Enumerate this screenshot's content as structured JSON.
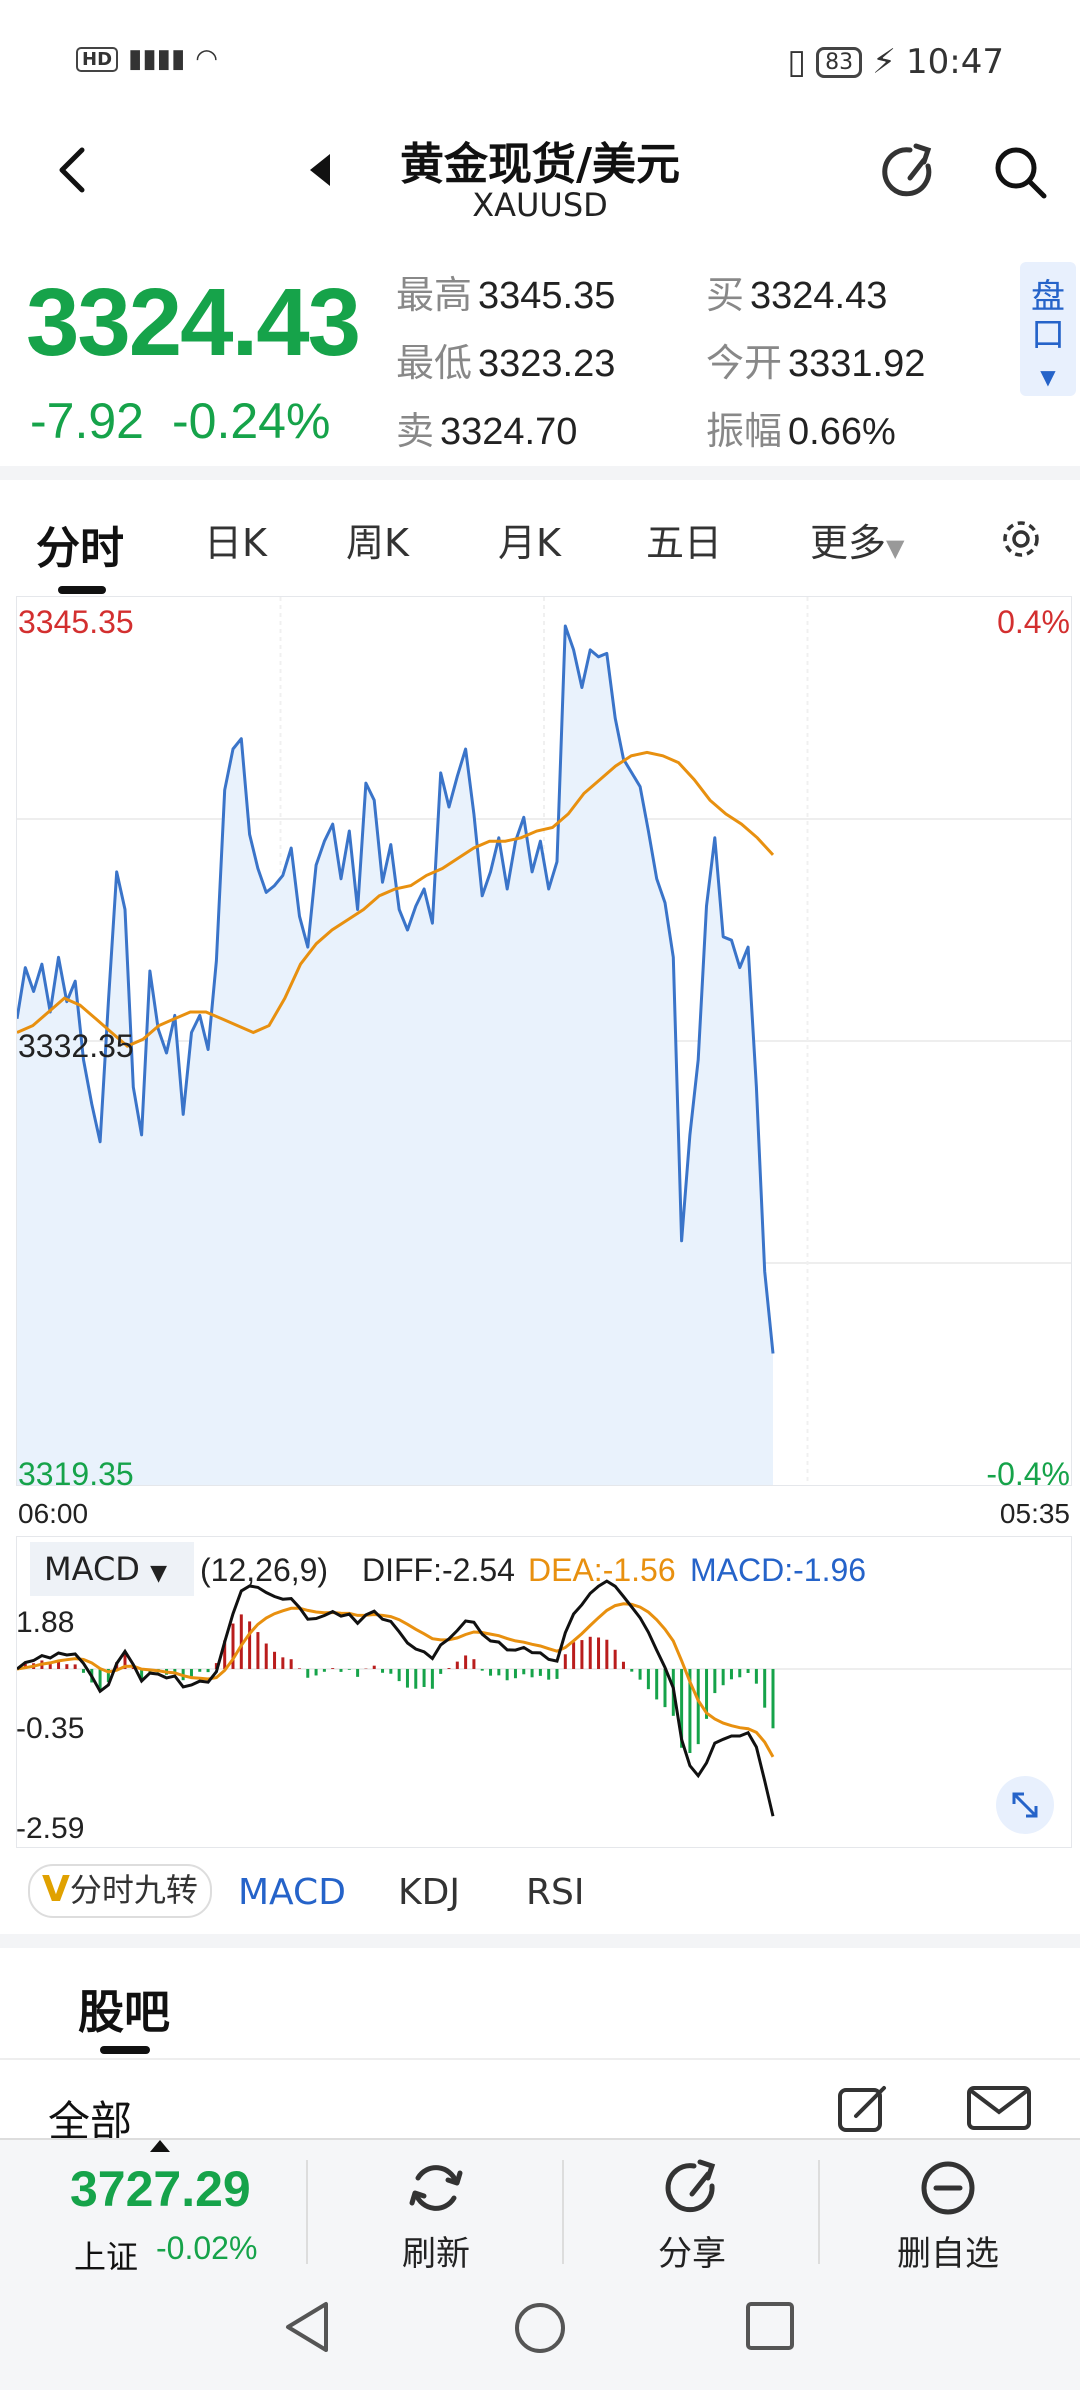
{
  "status_bar": {
    "left_text": "HD 5G",
    "battery": "83",
    "time": "10:47"
  },
  "header": {
    "title": "黄金现货/美元",
    "subtitle": "XAUUSD"
  },
  "quote": {
    "price": "3324.43",
    "change": "-7.92",
    "change_pct": "-0.24%",
    "high_label": "最高",
    "high": "3345.35",
    "low_label": "最低",
    "low": "3323.23",
    "sell_label": "卖",
    "sell": "3324.70",
    "buy_label": "买",
    "buy": "3324.43",
    "open_label": "今开",
    "open": "3331.92",
    "amp_label": "振幅",
    "amp": "0.66%",
    "pankou": "盘口"
  },
  "tabs": [
    "分时",
    "日K",
    "周K",
    "月K",
    "五日",
    "更多"
  ],
  "chart": {
    "y_top": "3345.35",
    "y_mid": "3332.35",
    "y_bottom": "3319.35",
    "pct_top": "0.4%",
    "pct_bottom": "-0.4%",
    "time_start": "06:00",
    "time_end": "05:35"
  },
  "chart_data": {
    "type": "line",
    "ylim": [
      3319.35,
      3345.35
    ],
    "series": [
      {
        "values": [
          3333.0,
          3334.5,
          3333.8,
          3334.6,
          3333.2,
          3334.8,
          3333.5,
          3334.1,
          3331.8,
          3330.5,
          3329.4,
          3333.5,
          3337.3,
          3336.2,
          3331.0,
          3329.6,
          3334.4,
          3332.7,
          3332.0,
          3333.1,
          3330.2,
          3332.6,
          3333.1,
          3332.1,
          3334.7,
          3339.7,
          3340.9,
          3341.2,
          3338.4,
          3337.4,
          3336.7,
          3336.9,
          3337.2,
          3338.0,
          3336.0,
          3335.1,
          3337.5,
          3338.2,
          3338.7,
          3337.1,
          3338.5,
          3336.2,
          3339.9,
          3339.4,
          3337.0,
          3338.1,
          3336.2,
          3335.6,
          3336.3,
          3336.8,
          3335.8,
          3340.2,
          3339.2,
          3340.1,
          3340.9,
          3339.0,
          3336.6,
          3337.3,
          3338.3,
          3336.8,
          3338.2,
          3338.9,
          3337.3,
          3338.2,
          3336.8,
          3337.6,
          3344.5,
          3343.8,
          3342.7,
          3343.8,
          3343.6,
          3343.7,
          3341.8,
          3340.6,
          3340.2,
          3339.8,
          3338.5,
          3337.1,
          3336.4,
          3334.8,
          3326.5,
          3329.6,
          3331.8,
          3336.3,
          3338.3,
          3335.4,
          3335.3,
          3334.5,
          3335.1,
          3331.0,
          3325.6,
          3323.2
        ]
      },
      {
        "values": [
          3332.6,
          3332.8,
          3333.2,
          3333.6,
          3333.4,
          3333.0,
          3332.6,
          3332.2,
          3332.4,
          3332.8,
          3333.0,
          3333.2,
          3333.2,
          3333.0,
          3332.8,
          3332.6,
          3332.8,
          3333.6,
          3334.6,
          3335.2,
          3335.6,
          3335.9,
          3336.2,
          3336.6,
          3336.8,
          3336.9,
          3337.2,
          3337.4,
          3337.7,
          3338.0,
          3338.2,
          3338.2,
          3338.3,
          3338.5,
          3338.6,
          3339.0,
          3339.6,
          3340.0,
          3340.4,
          3340.7,
          3340.8,
          3340.7,
          3340.5,
          3340.0,
          3339.4,
          3339.0,
          3338.7,
          3338.3,
          3337.8
        ]
      }
    ]
  },
  "macd": {
    "selector": "MACD",
    "params": "(12,26,9)",
    "diff_label": "DIFF:-2.54",
    "dea_label": "DEA:-1.56",
    "macd_label": "MACD:-1.96",
    "y_top": "1.88",
    "y_mid": "-0.35",
    "y_bottom": "-2.59",
    "colors": {
      "diff": "#111111",
      "dea": "#e8900f",
      "macd": "#2563c9",
      "pos": "#b91c1c",
      "neg": "#16a34a"
    }
  },
  "indicators": {
    "chip": "分时九转",
    "chip_mark": "V",
    "items": [
      "MACD",
      "KDJ",
      "RSI"
    ]
  },
  "guba": {
    "title": "股吧",
    "filter": "全部"
  },
  "bottom_bar": {
    "index_value": "3727.29",
    "index_name": "上证",
    "index_change": "-0.02%",
    "refresh": "刷新",
    "share": "分享",
    "remove": "删自选"
  },
  "colors": {
    "up": "#d32f2f",
    "down": "#16a34a",
    "accent": "#2563c9",
    "price_line": "#3a74c9",
    "avg_line": "#e8900f"
  }
}
